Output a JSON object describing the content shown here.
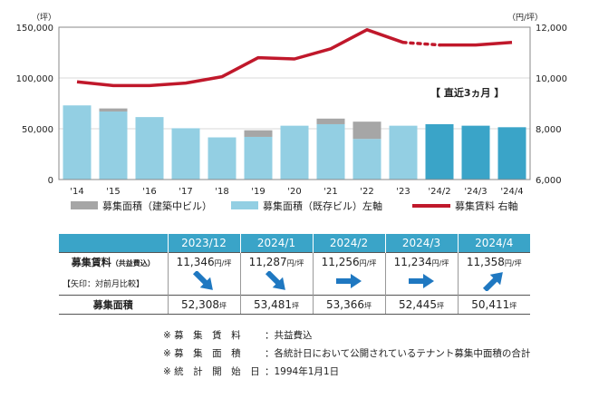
{
  "chart_data": {
    "type": "bar+line",
    "categories": [
      "'14",
      "'15",
      "'16",
      "'17",
      "'18",
      "'19",
      "'20",
      "'21",
      "'22",
      "'23",
      "'24/2",
      "'24/3",
      "'24/4"
    ],
    "left_axis": {
      "unit": "（坪）",
      "ticks": [
        "150,000",
        "100,000",
        "50,000",
        "0"
      ],
      "range": [
        0,
        150000
      ]
    },
    "right_axis": {
      "unit": "（円/坪）",
      "ticks": [
        "12,000",
        "10,000",
        "8,000",
        "6,000"
      ],
      "range": [
        6000,
        12000
      ]
    },
    "series": [
      {
        "name": "募集面積（既存ビル）左軸",
        "type": "bar",
        "color": "#93cfe3",
        "values": [
          73000,
          67000,
          61500,
          50500,
          41500,
          42000,
          53000,
          54500,
          40000,
          53000,
          54500,
          53000,
          51500
        ]
      },
      {
        "name": "募集面積（建築中ビル）",
        "type": "bar-stack",
        "color": "#a6a6a6",
        "values": [
          0,
          3000,
          0,
          0,
          0,
          6500,
          0,
          5500,
          17000,
          0,
          0,
          0,
          0
        ]
      },
      {
        "name": "募集賃料 右軸",
        "type": "line",
        "color": "#c0182b",
        "values": [
          9850,
          9700,
          9700,
          9800,
          10050,
          10800,
          10750,
          11150,
          11900,
          11400,
          11300,
          11300,
          11400
        ]
      }
    ],
    "highlight_label": "【 直近3ヵ月 】",
    "highlight_from_index": 10,
    "highlight_color": "#3aa4c8"
  },
  "legend": [
    {
      "label": "募集面積（建築中ビル）",
      "color": "#a6a6a6",
      "kind": "box"
    },
    {
      "label": "募集面積（既存ビル）左軸",
      "color": "#93cfe3",
      "kind": "box"
    },
    {
      "label": "募集賃料 右軸",
      "color": "#c0182b",
      "kind": "line"
    }
  ],
  "table": {
    "headers": [
      "2023/12",
      "2024/1",
      "2024/2",
      "2024/3",
      "2024/4"
    ],
    "row_rent_label": "募集賃料",
    "row_rent_sub": "（共益費込）",
    "row_rent_note": "【矢印：対前月比較】",
    "rent_unit": "円/坪",
    "rents": [
      "11,346",
      "11,287",
      "11,256",
      "11,234",
      "11,358"
    ],
    "arrows": [
      "down",
      "down",
      "right",
      "right",
      "up"
    ],
    "row_area_label": "募集面積",
    "area_unit": "坪",
    "areas": [
      "52,308",
      "53,481",
      "53,366",
      "52,445",
      "50,411"
    ]
  },
  "notes": [
    {
      "key": "※ 募　集　賃　料",
      "value": "：共益費込"
    },
    {
      "key": "※ 募　集　面　積",
      "value": "：各統計日において公開されているテナント募集中面積の合計"
    },
    {
      "key": "※ 統　計　開　始　日",
      "value": "：1994年1月1日"
    }
  ]
}
